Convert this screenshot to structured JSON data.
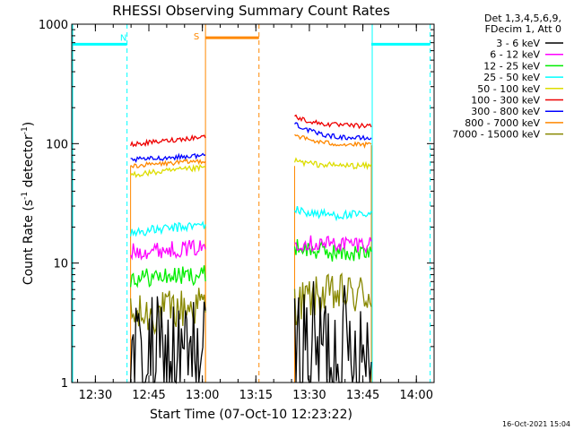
{
  "chart_data": {
    "type": "line",
    "title": "RHESSI Observing Summary Count Rates",
    "xlabel": "Start Time (07-Oct-10 12:23:22)",
    "ylabel_main": "Count Rate (s",
    "ylabel_sup1": "-1",
    "ylabel_mid": " detector",
    "ylabel_sup2": "-1",
    "ylabel_end": ")",
    "y_scale": "log",
    "ylim": [
      1,
      1000
    ],
    "xlim_minutes": [
      0,
      101.6
    ],
    "x_ticks": [
      {
        "label": "12:30",
        "minutes": 6.63
      },
      {
        "label": "12:45",
        "minutes": 21.63
      },
      {
        "label": "13:00",
        "minutes": 36.63
      },
      {
        "label": "13:15",
        "minutes": 51.63
      },
      {
        "label": "13:30",
        "minutes": 66.63
      },
      {
        "label": "13:45",
        "minutes": 81.63
      },
      {
        "label": "14:00",
        "minutes": 96.63
      }
    ],
    "y_ticks": [
      {
        "label": "1",
        "value": 1
      },
      {
        "label": "10",
        "value": 10
      },
      {
        "label": "100",
        "value": 100
      },
      {
        "label": "1000",
        "value": 1000
      }
    ],
    "legend": {
      "placement": "outside-right",
      "header": [
        "Det 1,3,4,5,6,9,",
        "FDecim 1, Att 0"
      ],
      "entries": [
        {
          "label": "3 - 6 keV",
          "color": "#000000"
        },
        {
          "label": "6 - 12 keV",
          "color": "#ff00ff"
        },
        {
          "label": "12 - 25 keV",
          "color": "#00ee00"
        },
        {
          "label": "25 - 50 keV",
          "color": "#00ffff"
        },
        {
          "label": "50 - 100 keV",
          "color": "#dddd00"
        },
        {
          "label": "100 - 300 keV",
          "color": "#ee0000"
        },
        {
          "label": "300 - 800 keV",
          "color": "#0000ff"
        },
        {
          "label": "800 - 7000 keV",
          "color": "#ff8800"
        },
        {
          "label": "7000 - 15000 keV",
          "color": "#888800"
        }
      ]
    },
    "segments": [
      {
        "start": 16.5,
        "end": 37.5
      },
      {
        "start": 62.5,
        "end": 84.0
      }
    ],
    "series": [
      {
        "name": "3 - 6 keV",
        "color": "#000000",
        "seg1": [
          1.5,
          1.6
        ],
        "seg2": [
          2.0,
          2.0
        ],
        "noise": 0.55
      },
      {
        "name": "6 - 12 keV",
        "color": "#ff00ff",
        "seg1": [
          12.5,
          13.5
        ],
        "seg2": [
          15.0,
          14.5
        ],
        "noise": 0.07
      },
      {
        "name": "12 - 25 keV",
        "color": "#00ee00",
        "seg1": [
          7.5,
          8.0
        ],
        "seg2": [
          14.0,
          12.0
        ],
        "noise": 0.08
      },
      {
        "name": "25 - 50 keV",
        "color": "#00ffff",
        "seg1": [
          18.0,
          21.0
        ],
        "seg2": [
          28.0,
          25.0
        ],
        "noise": 0.04
      },
      {
        "name": "50 - 100 keV",
        "color": "#dddd00",
        "seg1": [
          55.0,
          63.0
        ],
        "seg2": [
          72.0,
          65.0
        ],
        "noise": 0.025
      },
      {
        "name": "100 - 300 keV",
        "color": "#ee0000",
        "seg1": [
          98.0,
          115.0
        ],
        "seg2": [
          170.0,
          140.0
        ],
        "noise": 0.02
      },
      {
        "name": "300 - 800 keV",
        "color": "#0000ff",
        "seg1": [
          73.0,
          80.0
        ],
        "seg2": [
          150.0,
          110.0
        ],
        "noise": 0.02
      },
      {
        "name": "800 - 7000 keV",
        "color": "#ff8800",
        "seg1": [
          65.0,
          72.0
        ],
        "seg2": [
          120.0,
          97.0
        ],
        "noise": 0.02
      },
      {
        "name": "7000 - 15000 keV",
        "color": "#888800",
        "seg1": [
          3.5,
          4.5
        ],
        "seg2": [
          4.5,
          5.5
        ],
        "noise": 0.18
      }
    ],
    "night_bars": [
      {
        "label": "N",
        "color": "#00ffff",
        "start": 0.0,
        "end": 15.5,
        "value": 680
      },
      {
        "label": "",
        "color": "#00ffff",
        "start": 84.0,
        "end": 100.5,
        "value": 680
      }
    ],
    "night_lines": [
      15.5,
      100.5
    ],
    "saa_bars": [
      {
        "label": "S",
        "color": "#ff8800",
        "start": 37.5,
        "end": 52.5,
        "value": 770
      }
    ],
    "saa_dashed": [
      52.5
    ],
    "annotations": {
      "night_label": "N",
      "saa_label": "S"
    }
  },
  "footer": {
    "timestamp": "16-Oct-2021 15:04"
  }
}
